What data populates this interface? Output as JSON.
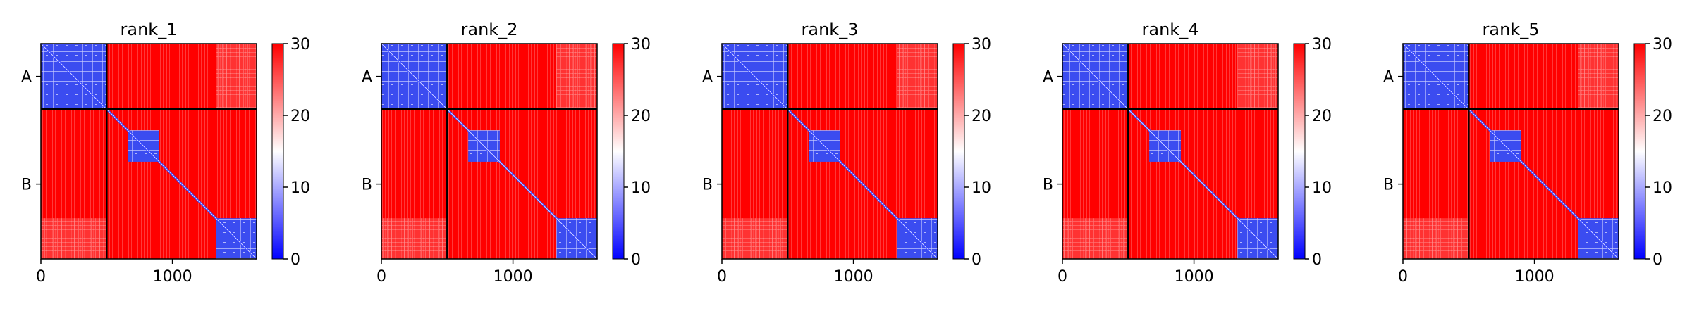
{
  "chart_data": {
    "type": "heatmap",
    "colormap": {
      "name": "bwr",
      "low_color": "#0000ff",
      "mid_color": "#ffffff",
      "high_color": "#ff0000",
      "range": [
        0,
        30
      ],
      "ticks": [
        0,
        10,
        20,
        30
      ],
      "tick_labels": [
        "0",
        "10",
        "20",
        "30"
      ]
    },
    "x_ticks": [
      0,
      1000
    ],
    "x_tick_labels": [
      "0",
      "1000"
    ],
    "x_range": [
      0,
      1640
    ],
    "y_range": [
      0,
      1640
    ],
    "chains": [
      {
        "label": "A",
        "start": 0,
        "end": 500
      },
      {
        "label": "B",
        "start": 500,
        "end": 1640
      }
    ],
    "low_blocks": [
      {
        "start": 0,
        "end": 500
      },
      {
        "start": 660,
        "end": 900
      },
      {
        "start": 1330,
        "end": 1640
      }
    ],
    "panels": [
      {
        "title": "rank_1"
      },
      {
        "title": "rank_2"
      },
      {
        "title": "rank_3"
      },
      {
        "title": "rank_4"
      },
      {
        "title": "rank_5"
      }
    ]
  }
}
